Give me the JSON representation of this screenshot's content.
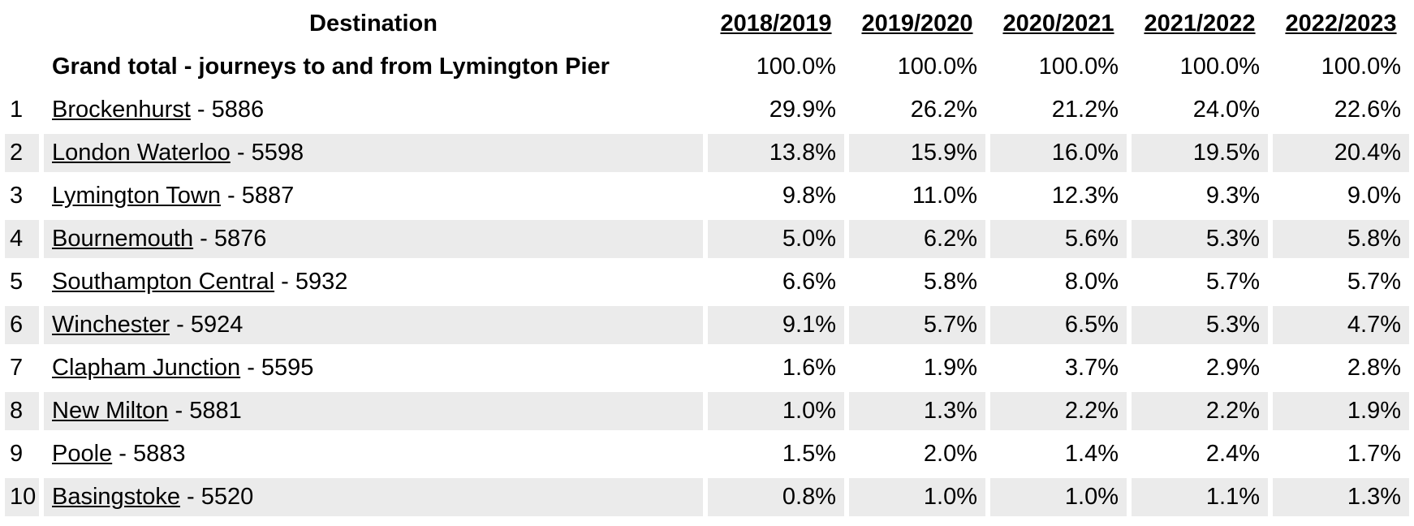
{
  "colors": {
    "background": "#ffffff",
    "stripe_row_bg": "#ebebeb",
    "text": "#000000"
  },
  "table": {
    "destination_header": "Destination",
    "year_headers": [
      "2018/2019",
      "2019/2020",
      "2020/2021",
      "2021/2022",
      "2022/2023"
    ],
    "grand_total": {
      "label": "Grand total - journeys to and from Lymington Pier",
      "values": [
        "100.0%",
        "100.0%",
        "100.0%",
        "100.0%",
        "100.0%"
      ]
    },
    "rows": [
      {
        "rank": "1",
        "station": "Brockenhurst",
        "suffix": " - 5886",
        "values": [
          "29.9%",
          "26.2%",
          "21.2%",
          "24.0%",
          "22.6%"
        ]
      },
      {
        "rank": "2",
        "station": "London Waterloo",
        "suffix": " - 5598",
        "values": [
          "13.8%",
          "15.9%",
          "16.0%",
          "19.5%",
          "20.4%"
        ]
      },
      {
        "rank": "3",
        "station": "Lymington Town",
        "suffix": " - 5887",
        "values": [
          "9.8%",
          "11.0%",
          "12.3%",
          "9.3%",
          "9.0%"
        ]
      },
      {
        "rank": "4",
        "station": "Bournemouth",
        "suffix": " - 5876",
        "values": [
          "5.0%",
          "6.2%",
          "5.6%",
          "5.3%",
          "5.8%"
        ]
      },
      {
        "rank": "5",
        "station": "Southampton Central",
        "suffix": " - 5932",
        "values": [
          "6.6%",
          "5.8%",
          "8.0%",
          "5.7%",
          "5.7%"
        ]
      },
      {
        "rank": "6",
        "station": "Winchester",
        "suffix": " - 5924",
        "values": [
          "9.1%",
          "5.7%",
          "6.5%",
          "5.3%",
          "4.7%"
        ]
      },
      {
        "rank": "7",
        "station": "Clapham Junction",
        "suffix": " - 5595",
        "values": [
          "1.6%",
          "1.9%",
          "3.7%",
          "2.9%",
          "2.8%"
        ]
      },
      {
        "rank": "8",
        "station": "New Milton",
        "suffix": " - 5881",
        "values": [
          "1.0%",
          "1.3%",
          "2.2%",
          "2.2%",
          "1.9%"
        ]
      },
      {
        "rank": "9",
        "station": "Poole",
        "suffix": " - 5883",
        "values": [
          "1.5%",
          "2.0%",
          "1.4%",
          "2.4%",
          "1.7%"
        ]
      },
      {
        "rank": "10",
        "station": "Basingstoke",
        "suffix": " - 5520",
        "values": [
          "0.8%",
          "1.0%",
          "1.0%",
          "1.1%",
          "1.3%"
        ]
      }
    ]
  },
  "chart_data": {
    "type": "table",
    "header": "Destination",
    "categories": [
      "2018/2019",
      "2019/2020",
      "2020/2021",
      "2021/2022",
      "2022/2023"
    ],
    "unit": "%",
    "series": [
      {
        "name": "Grand total - journeys to and from Lymington Pier",
        "values": [
          100.0,
          100.0,
          100.0,
          100.0,
          100.0
        ]
      },
      {
        "name": "Brockenhurst - 5886",
        "rank": 1,
        "values": [
          29.9,
          26.2,
          21.2,
          24.0,
          22.6
        ]
      },
      {
        "name": "London Waterloo - 5598",
        "rank": 2,
        "values": [
          13.8,
          15.9,
          16.0,
          19.5,
          20.4
        ]
      },
      {
        "name": "Lymington Town - 5887",
        "rank": 3,
        "values": [
          9.8,
          11.0,
          12.3,
          9.3,
          9.0
        ]
      },
      {
        "name": "Bournemouth - 5876",
        "rank": 4,
        "values": [
          5.0,
          6.2,
          5.6,
          5.3,
          5.8
        ]
      },
      {
        "name": "Southampton Central - 5932",
        "rank": 5,
        "values": [
          6.6,
          5.8,
          8.0,
          5.7,
          5.7
        ]
      },
      {
        "name": "Winchester - 5924",
        "rank": 6,
        "values": [
          9.1,
          5.7,
          6.5,
          5.3,
          4.7
        ]
      },
      {
        "name": "Clapham Junction - 5595",
        "rank": 7,
        "values": [
          1.6,
          1.9,
          3.7,
          2.9,
          2.8
        ]
      },
      {
        "name": "New Milton - 5881",
        "rank": 8,
        "values": [
          1.0,
          1.3,
          2.2,
          2.2,
          1.9
        ]
      },
      {
        "name": "Poole - 5883",
        "rank": 9,
        "values": [
          1.5,
          2.0,
          1.4,
          2.4,
          1.7
        ]
      },
      {
        "name": "Basingstoke - 5520",
        "rank": 10,
        "values": [
          0.8,
          1.0,
          1.0,
          1.1,
          1.3
        ]
      }
    ]
  }
}
